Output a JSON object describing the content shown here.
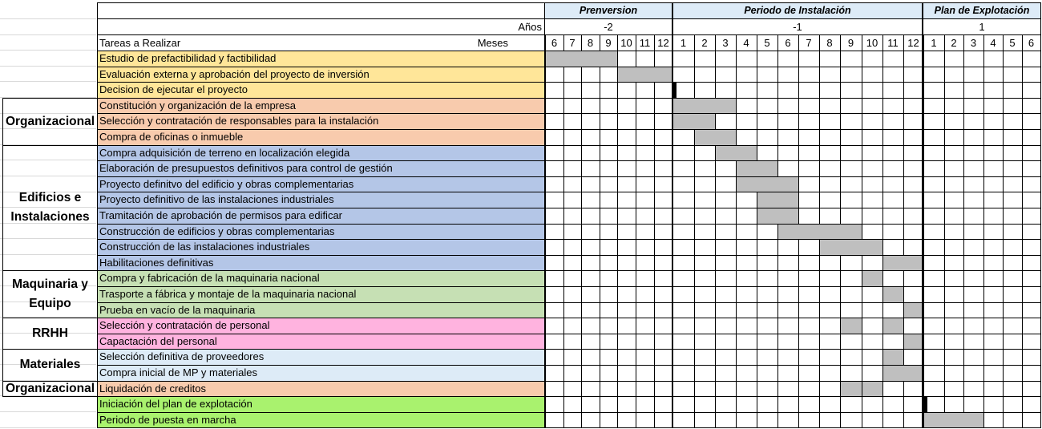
{
  "header": {
    "phases": [
      {
        "name": "Prenversion",
        "year": "-2",
        "months": [
          "6",
          "7",
          "8",
          "9",
          "10",
          "11",
          "12"
        ]
      },
      {
        "name": "Periodo de Instalación",
        "year": "-1",
        "months": [
          "1",
          "2",
          "3",
          "4",
          "5",
          "6",
          "7",
          "8",
          "9",
          "10",
          "11",
          "12"
        ]
      },
      {
        "name": "Plan de Explotación",
        "year": "1",
        "months": [
          "1",
          "2",
          "3",
          "4",
          "5",
          "6"
        ]
      }
    ],
    "years_label": "Años",
    "tasks_label": "Tareas a Realizar",
    "months_label": "Meses"
  },
  "colors": {
    "phase_header": "#ddebf7",
    "bar": "#bfbfbf",
    "milestone": "#000000",
    "groups": {
      "pre": "#ffe699",
      "org": "#f8cbad",
      "edif": "#b4c6e7",
      "maq": "#c6e0b4",
      "rrhh": "#ffb3df",
      "mat": "#ddebf7",
      "org2": "#f8cbad",
      "exp": "#a9f26e"
    }
  },
  "categories": [
    {
      "key": "org",
      "label": "Organizacional"
    },
    {
      "key": "edif",
      "label": "Edificios e Instalaciones"
    },
    {
      "key": "maq",
      "label": "Maquinaria y Equipo"
    },
    {
      "key": "rrhh",
      "label": "RRHH"
    },
    {
      "key": "mat",
      "label": "Materiales"
    },
    {
      "key": "org2",
      "label": "Organizacional"
    }
  ],
  "tasks": [
    {
      "label": "Estudio de prefactibilidad y factibilidad",
      "group": "pre",
      "bars": [
        [
          0,
          4
        ]
      ]
    },
    {
      "label": "Evaluación externa y aprobación del proyecto de inversión",
      "group": "pre",
      "bars": [
        [
          4,
          7
        ]
      ]
    },
    {
      "label": "Decision de ejecutar el proyecto",
      "group": "pre",
      "milestone": 7
    },
    {
      "label": "Constitución y organización de la empresa",
      "group": "org",
      "bars": [
        [
          7,
          10
        ]
      ]
    },
    {
      "label": "Selección y contratación de responsables para la instalación",
      "group": "org",
      "bars": [
        [
          7,
          9
        ]
      ]
    },
    {
      "label": "Compra de oficinas o inmueble",
      "group": "org",
      "bars": [
        [
          8,
          10
        ]
      ]
    },
    {
      "label": "Compra adquisición de terreno en localización elegida",
      "group": "edif",
      "bars": [
        [
          9,
          11
        ]
      ]
    },
    {
      "label": "Elaboración de presupuestos definitivos para control de gestión",
      "group": "edif",
      "bars": [
        [
          10,
          12
        ]
      ]
    },
    {
      "label": "Proyecto definitvo del edificio y obras complementarias",
      "group": "edif",
      "bars": [
        [
          10,
          13
        ]
      ]
    },
    {
      "label": "Proyecto definitivo de las instalaciones industriales",
      "group": "edif",
      "bars": [
        [
          11,
          13
        ]
      ]
    },
    {
      "label": "Tramitación de aprobación de permisos para edificar",
      "group": "edif",
      "bars": [
        [
          11,
          13
        ]
      ]
    },
    {
      "label": "Construcción de edificios y obras complementarias",
      "group": "edif",
      "bars": [
        [
          12,
          16
        ]
      ]
    },
    {
      "label": "Construcción de las instalaciones industriales",
      "group": "edif",
      "bars": [
        [
          14,
          17
        ]
      ]
    },
    {
      "label": "Habilitaciones definitivas",
      "group": "edif",
      "bars": [
        [
          17,
          19
        ]
      ]
    },
    {
      "label": "Compra y fabricación de la maquinaria nacional",
      "group": "maq",
      "bars": [
        [
          16,
          17
        ]
      ]
    },
    {
      "label": "Trasporte a fábrica y montaje de la maquinaria nacional",
      "group": "maq",
      "bars": [
        [
          17,
          18
        ]
      ]
    },
    {
      "label": "Prueba en vacío de la maquinaria",
      "group": "maq",
      "bars": [
        [
          18,
          19
        ]
      ]
    },
    {
      "label": "Selección y contratación de personal",
      "group": "rrhh",
      "bars": [
        [
          15,
          16
        ],
        [
          17,
          18
        ]
      ]
    },
    {
      "label": "Capactación del personal",
      "group": "rrhh",
      "bars": [
        [
          18,
          19
        ]
      ]
    },
    {
      "label": "Selección definitiva de proveedores",
      "group": "mat",
      "bars": [
        [
          17,
          18
        ]
      ]
    },
    {
      "label": "Compra inicial de MP y materiales",
      "group": "mat",
      "bars": [
        [
          17,
          19
        ]
      ]
    },
    {
      "label": "Liquidación de creditos",
      "group": "org2",
      "bars": [
        [
          15,
          16
        ],
        [
          16,
          17
        ]
      ]
    },
    {
      "label": "Iniciación del plan de explotación",
      "group": "exp",
      "milestone": 19
    },
    {
      "label": "Periodo de puesta en marcha",
      "group": "exp",
      "bars": [
        [
          19,
          22
        ]
      ]
    }
  ]
}
